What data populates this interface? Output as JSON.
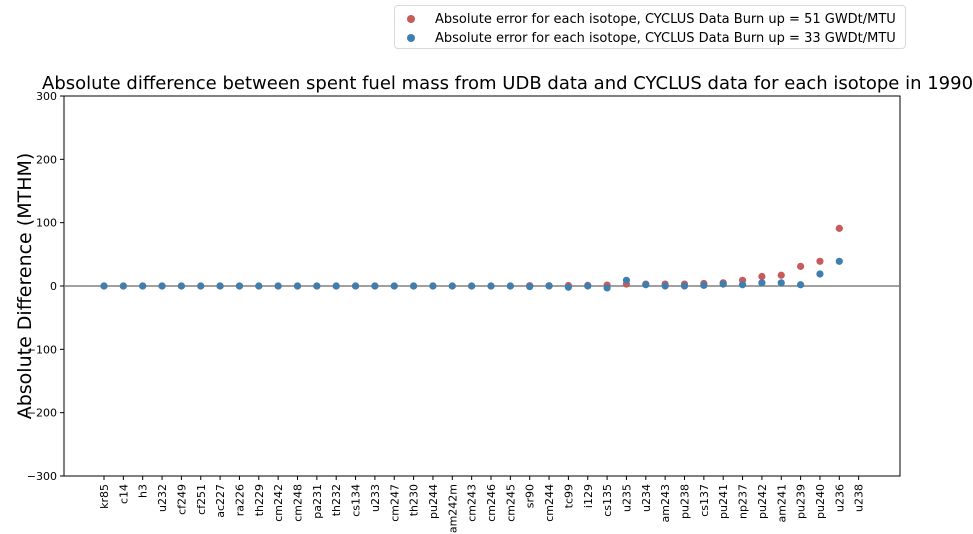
{
  "chart_data": {
    "type": "scatter",
    "title": "Absolute difference between spent fuel mass from UDB data and CYCLUS data for each isotope in 1990",
    "xlabel": "",
    "ylabel": "Absolute Difference (MTHM)",
    "ylim": [
      -300,
      300
    ],
    "yticks": [
      -300,
      -200,
      -100,
      0,
      100,
      200,
      300
    ],
    "categories": [
      "kr85",
      "c14",
      "h3",
      "u232",
      "cf249",
      "cf251",
      "ac227",
      "ra226",
      "th229",
      "cm242",
      "cm248",
      "pa231",
      "th232",
      "cs134",
      "u233",
      "cm247",
      "th230",
      "pu244",
      "am242m",
      "cm243",
      "cm246",
      "cm245",
      "sr90",
      "cm244",
      "tc99",
      "i129",
      "cs135",
      "u235",
      "u234",
      "am243",
      "pu238",
      "cs137",
      "pu241",
      "np237",
      "pu242",
      "am241",
      "pu239",
      "pu240",
      "u236",
      "u238"
    ],
    "series": [
      {
        "name": "Absolute error for each isotope, CYCLUS Data Burn up = 51 GWDt/MTU",
        "color": "#c85a5a",
        "values": [
          0,
          0,
          0,
          0,
          0,
          0,
          0,
          0,
          0,
          0,
          0,
          0,
          0,
          0,
          0,
          0,
          0,
          0,
          0,
          0,
          0,
          0,
          0.5,
          0.5,
          0.8,
          1,
          1.5,
          3,
          3,
          3,
          3,
          4,
          5,
          9,
          15,
          17,
          31,
          39,
          91,
          null
        ]
      },
      {
        "name": "Absolute error for each isotope, CYCLUS Data Burn up = 33 GWDt/MTU",
        "color": "#3f7fb0",
        "values": [
          0,
          0,
          0,
          0,
          0,
          0,
          0,
          0,
          0,
          0,
          0,
          0,
          0,
          0,
          0,
          0,
          0,
          0,
          0,
          0,
          0,
          0,
          -1,
          0,
          -2,
          0,
          -3,
          9,
          2,
          0,
          0,
          1,
          3,
          2,
          5,
          5,
          2,
          19,
          39,
          null
        ]
      }
    ],
    "zero_line": true,
    "grid": false,
    "legend_position": "top-right"
  }
}
